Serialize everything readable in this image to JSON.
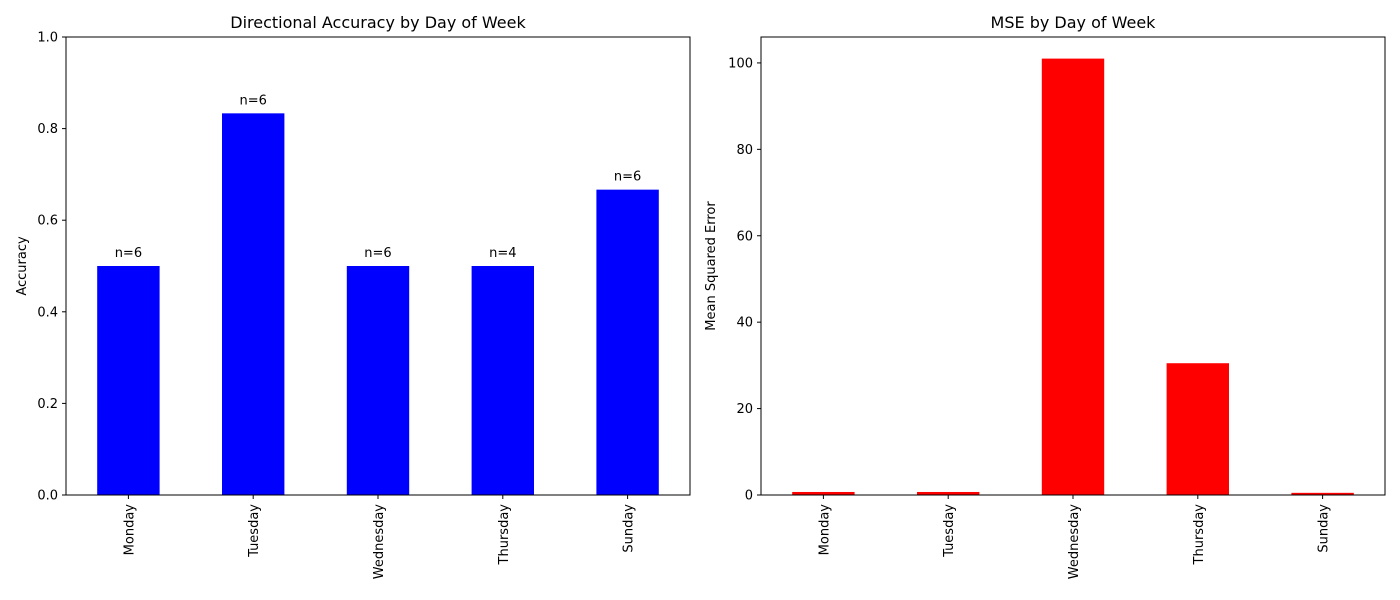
{
  "chart_data": [
    {
      "type": "bar",
      "title": "Directional Accuracy by Day of Week",
      "xlabel": "",
      "ylabel": "Accuracy",
      "categories": [
        "Monday",
        "Tuesday",
        "Wednesday",
        "Thursday",
        "Sunday"
      ],
      "values": [
        0.5,
        0.8333,
        0.5,
        0.5,
        0.6667
      ],
      "bar_labels": [
        "n=6",
        "n=6",
        "n=6",
        "n=4",
        "n=6"
      ],
      "ylim": [
        0,
        1.0
      ],
      "yticks": [
        0.0,
        0.2,
        0.4,
        0.6,
        0.8,
        1.0
      ],
      "ytick_labels": [
        "0.0",
        "0.2",
        "0.4",
        "0.6",
        "0.8",
        "1.0"
      ],
      "color": "#0000ff",
      "grid": false
    },
    {
      "type": "bar",
      "title": "MSE by Day of Week",
      "xlabel": "",
      "ylabel": "Mean Squared Error",
      "categories": [
        "Monday",
        "Tuesday",
        "Wednesday",
        "Thursday",
        "Sunday"
      ],
      "values": [
        0.7,
        0.7,
        101.0,
        30.5,
        0.5
      ],
      "ylim": [
        0,
        106
      ],
      "yticks": [
        0,
        20,
        40,
        60,
        80,
        100
      ],
      "ytick_labels": [
        "0",
        "20",
        "40",
        "60",
        "80",
        "100"
      ],
      "color": "#ff0000",
      "grid": false
    }
  ]
}
